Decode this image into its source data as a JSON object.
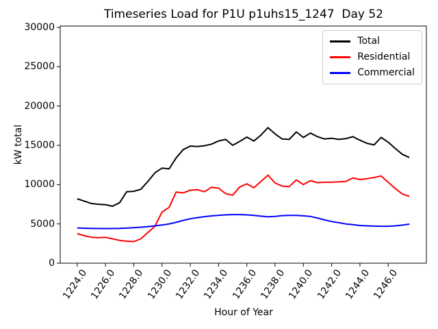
{
  "figure": {
    "title": "Timeseries Load for P1U p1uhs15_1247  Day 52",
    "xlabel": "Hour of Year",
    "ylabel": "kW total"
  },
  "legend": {
    "position": "upper right",
    "entries": [
      {
        "label": "Total",
        "color": "#000000"
      },
      {
        "label": "Residential",
        "color": "#ff0000"
      },
      {
        "label": "Commercial",
        "color": "#0000ff"
      }
    ]
  },
  "chart_data": {
    "type": "line",
    "title": "Timeseries Load for P1U p1uhs15_1247  Day 52",
    "xlabel": "Hour of Year",
    "ylabel": "kW total",
    "grid": false,
    "legend_position": "upper right",
    "xlim": [
      1222.8,
      1248.7
    ],
    "ylim": [
      0,
      30175
    ],
    "x_ticks": {
      "values": [
        1224,
        1226,
        1228,
        1230,
        1232,
        1234,
        1236,
        1238,
        1240,
        1242,
        1244,
        1246
      ],
      "labels": [
        "1224.0",
        "1226.0",
        "1228.0",
        "1230.0",
        "1232.0",
        "1234.0",
        "1236.0",
        "1238.0",
        "1240.0",
        "1242.0",
        "1244.0",
        "1246.0"
      ]
    },
    "y_ticks": {
      "values": [
        0,
        5000,
        10000,
        15000,
        20000,
        25000,
        30000
      ],
      "labels": [
        "0",
        "5000",
        "10000",
        "15000",
        "20000",
        "25000",
        "30000"
      ]
    },
    "x": [
      1224.0,
      1224.5,
      1225.0,
      1225.5,
      1226.0,
      1226.5,
      1227.0,
      1227.5,
      1228.0,
      1228.5,
      1229.0,
      1229.5,
      1230.0,
      1230.5,
      1231.0,
      1231.5,
      1232.0,
      1232.5,
      1233.0,
      1233.5,
      1234.0,
      1234.5,
      1235.0,
      1235.5,
      1236.0,
      1236.5,
      1237.0,
      1237.5,
      1238.0,
      1238.5,
      1239.0,
      1239.5,
      1240.0,
      1240.5,
      1241.0,
      1241.5,
      1242.0,
      1242.5,
      1243.0,
      1243.5,
      1244.0,
      1244.5,
      1245.0,
      1245.5,
      1246.0,
      1246.5,
      1247.0,
      1247.5
    ],
    "series": [
      {
        "name": "Total",
        "color": "#000000",
        "values": [
          8200,
          7900,
          7600,
          7500,
          7450,
          7250,
          7700,
          9100,
          9150,
          9400,
          10400,
          11500,
          12100,
          12000,
          13400,
          14450,
          14900,
          14850,
          14950,
          15150,
          15550,
          15750,
          15000,
          15500,
          16050,
          15550,
          16300,
          17250,
          16450,
          15800,
          15750,
          16700,
          16000,
          16550,
          16100,
          15800,
          15900,
          15750,
          15850,
          16100,
          15650,
          15250,
          15050,
          16000,
          15400,
          14600,
          13850,
          13450
        ]
      },
      {
        "name": "Residential",
        "color": "#ff0000",
        "values": [
          3750,
          3500,
          3300,
          3250,
          3300,
          3100,
          2900,
          2800,
          2750,
          3100,
          3900,
          4700,
          6500,
          7100,
          9050,
          8950,
          9300,
          9350,
          9100,
          9650,
          9550,
          8850,
          8650,
          9700,
          10100,
          9600,
          10400,
          11200,
          10200,
          9800,
          9750,
          10600,
          10000,
          10500,
          10250,
          10300,
          10300,
          10350,
          10400,
          10850,
          10650,
          10750,
          10900,
          11100,
          10300,
          9500,
          8800,
          8500
        ]
      },
      {
        "name": "Commercial",
        "color": "#0000ff",
        "values": [
          4480,
          4450,
          4430,
          4410,
          4400,
          4410,
          4430,
          4470,
          4520,
          4580,
          4660,
          4750,
          4870,
          5000,
          5200,
          5450,
          5650,
          5800,
          5920,
          6020,
          6100,
          6150,
          6180,
          6180,
          6150,
          6080,
          5980,
          5900,
          5950,
          6050,
          6080,
          6080,
          6030,
          5950,
          5750,
          5500,
          5300,
          5150,
          5000,
          4900,
          4800,
          4750,
          4720,
          4700,
          4700,
          4750,
          4850,
          4970
        ]
      }
    ]
  }
}
